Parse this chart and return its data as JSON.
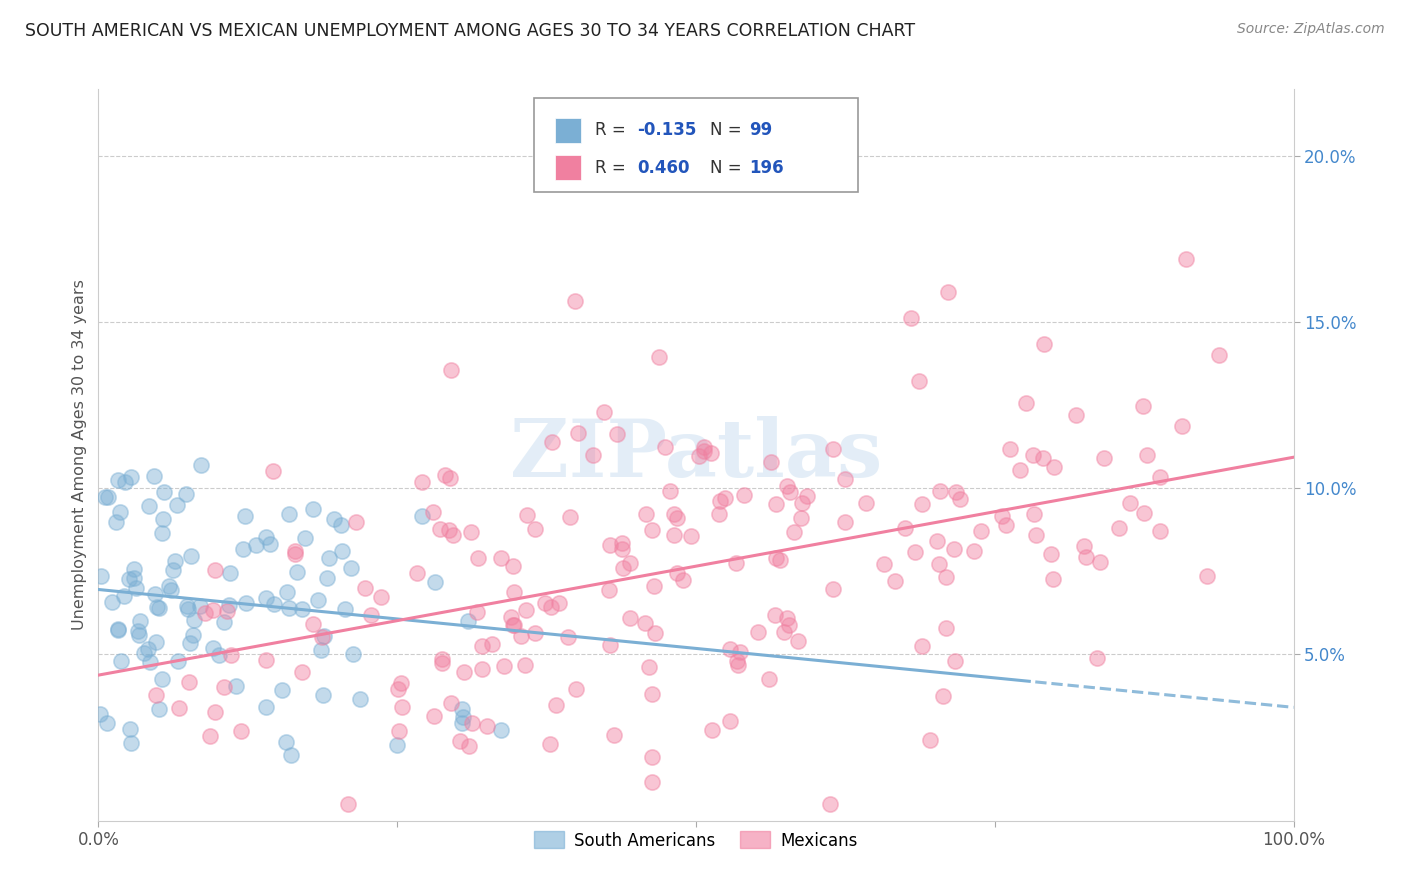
{
  "title": "SOUTH AMERICAN VS MEXICAN UNEMPLOYMENT AMONG AGES 30 TO 34 YEARS CORRELATION CHART",
  "source": "Source: ZipAtlas.com",
  "ylabel": "Unemployment Among Ages 30 to 34 years",
  "xlim": [
    0.0,
    1.0
  ],
  "ylim": [
    0.0,
    0.22
  ],
  "x_ticks": [
    0.0,
    0.25,
    0.5,
    0.75,
    1.0
  ],
  "x_tick_labels": [
    "0.0%",
    "",
    "",
    "",
    "100.0%"
  ],
  "y_ticks": [
    0.05,
    0.1,
    0.15,
    0.2
  ],
  "y_tick_labels": [
    "5.0%",
    "10.0%",
    "15.0%",
    "20.0%"
  ],
  "south_american_color": "#7bafd4",
  "mexican_color": "#f080a0",
  "sa_R": -0.135,
  "sa_N": 99,
  "mex_R": 0.46,
  "mex_N": 196,
  "watermark": "ZIPatlas",
  "background_color": "#ffffff",
  "grid_color": "#cccccc",
  "ytick_color": "#4488cc",
  "xtick_color": "#555555"
}
